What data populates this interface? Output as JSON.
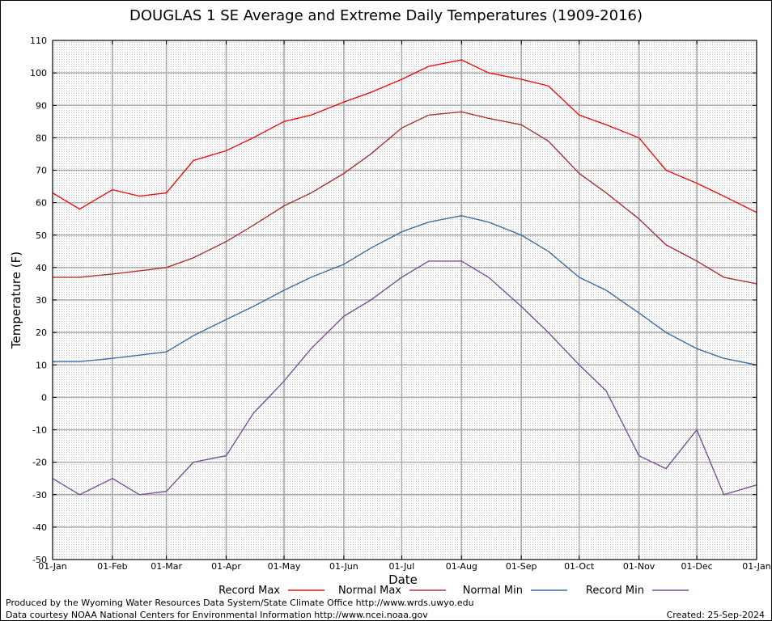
{
  "chart_data": {
    "type": "line",
    "title": "DOUGLAS 1 SE Average and Extreme Daily Temperatures (1909-2016)",
    "xlabel": "Date",
    "ylabel": "Temperature (F)",
    "ylim": [
      -50,
      110
    ],
    "yticks": [
      110,
      100,
      90,
      80,
      70,
      60,
      50,
      40,
      30,
      20,
      10,
      0,
      -10,
      -20,
      -30,
      -40,
      -50
    ],
    "xticks": [
      "01-Jan",
      "01-Feb",
      "01-Mar",
      "01-Apr",
      "01-May",
      "01-Jun",
      "01-Jul",
      "01-Aug",
      "01-Sep",
      "01-Oct",
      "01-Nov",
      "01-Dec",
      "01-Jan"
    ],
    "grid": true,
    "legend_position": "bottom",
    "x_month_day": [
      "01-Jan",
      "15-Jan",
      "01-Feb",
      "15-Feb",
      "01-Mar",
      "15-Mar",
      "01-Apr",
      "15-Apr",
      "01-May",
      "15-May",
      "01-Jun",
      "15-Jun",
      "01-Jul",
      "15-Jul",
      "01-Aug",
      "15-Aug",
      "01-Sep",
      "15-Sep",
      "01-Oct",
      "15-Oct",
      "01-Nov",
      "15-Nov",
      "01-Dec",
      "15-Dec",
      "01-Jan"
    ],
    "series": [
      {
        "name": "Record Max",
        "color": "#ee1111",
        "values": [
          63,
          58,
          64,
          62,
          63,
          73,
          76,
          80,
          85,
          87,
          91,
          94,
          98,
          102,
          104,
          100,
          98,
          96,
          87,
          84,
          80,
          70,
          66,
          62,
          57
        ]
      },
      {
        "name": "Normal Max",
        "color": "#b03030",
        "values": [
          37,
          37,
          38,
          39,
          40,
          43,
          48,
          53,
          59,
          63,
          69,
          75,
          83,
          87,
          88,
          86,
          84,
          79,
          69,
          63,
          55,
          47,
          42,
          37,
          35
        ]
      },
      {
        "name": "Normal Min",
        "color": "#3a6ea5",
        "values": [
          11,
          11,
          12,
          13,
          14,
          19,
          24,
          28,
          33,
          37,
          41,
          46,
          51,
          54,
          56,
          54,
          50,
          45,
          37,
          33,
          26,
          20,
          15,
          12,
          10
        ]
      },
      {
        "name": "Record Min",
        "color": "#7a4f9a",
        "values": [
          -25,
          -30,
          -25,
          -30,
          -29,
          -20,
          -18,
          -5,
          5,
          15,
          25,
          30,
          37,
          42,
          42,
          37,
          28,
          20,
          10,
          2,
          -18,
          -22,
          -10,
          -30,
          -27
        ]
      }
    ]
  },
  "footer": {
    "line1": "Produced by the Wyoming Water Resources Data System/State Climate Office http://www.wrds.uwyo.edu",
    "line2": "Data courtesy NOAA National Centers for Environmental Information http://www.ncei.noaa.gov",
    "created": "Created:  25-Sep-2024"
  }
}
